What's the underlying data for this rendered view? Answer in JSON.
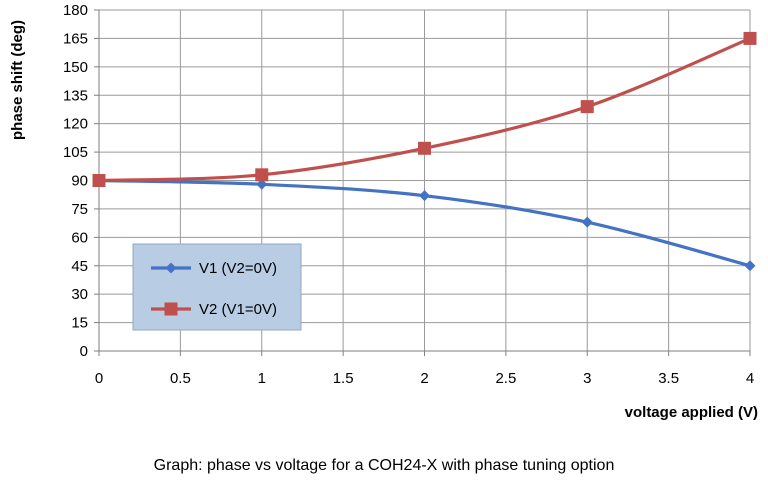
{
  "chart_data": {
    "type": "line",
    "x": [
      0,
      1,
      2,
      3,
      4
    ],
    "series": [
      {
        "name": "V1 (V2=0V)",
        "values": [
          90,
          88,
          82,
          68,
          45
        ],
        "color": "#4472C4",
        "marker": "diamond"
      },
      {
        "name": "V2 (V1=0V)",
        "values": [
          90,
          93,
          107,
          129,
          165
        ],
        "color": "#C0504D",
        "marker": "square"
      }
    ],
    "xlabel": "voltage applied (V)",
    "ylabel": "phase shift (deg)",
    "xlim": [
      0,
      4
    ],
    "ylim": [
      0,
      180
    ],
    "xticks": [
      "0",
      "0.5",
      "1",
      "1.5",
      "2",
      "2.5",
      "3",
      "3.5",
      "4"
    ],
    "yticks": [
      "0",
      "15",
      "30",
      "45",
      "60",
      "75",
      "90",
      "105",
      "120",
      "135",
      "150",
      "165",
      "180"
    ],
    "grid": true,
    "legend_placement": "lower-left",
    "legend_background": "#B8CCE4"
  },
  "caption": "Graph: phase vs voltage for a COH24-X with phase tuning option"
}
